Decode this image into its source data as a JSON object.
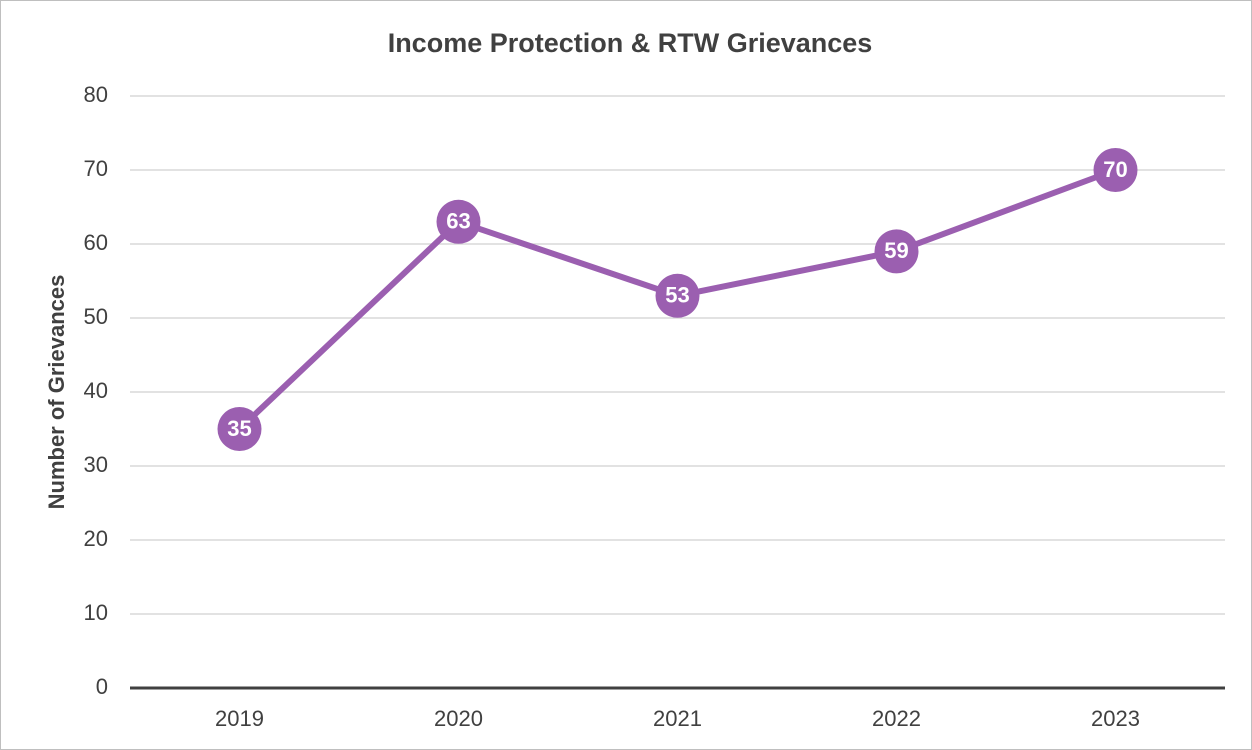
{
  "chart_data": {
    "type": "line",
    "title": "Income Protection & RTW Grievances",
    "y_label": "Number of Grievances",
    "categories": [
      "2019",
      "2020",
      "2021",
      "2022",
      "2023"
    ],
    "series": [
      {
        "name": "Grievances",
        "color": "#9b5fb0",
        "values": [
          35,
          63,
          53,
          59,
          70
        ]
      }
    ],
    "ylim": [
      0,
      80
    ],
    "yticks": [
      0,
      10,
      20,
      30,
      40,
      50,
      60,
      70,
      80
    ],
    "grid": true
  }
}
